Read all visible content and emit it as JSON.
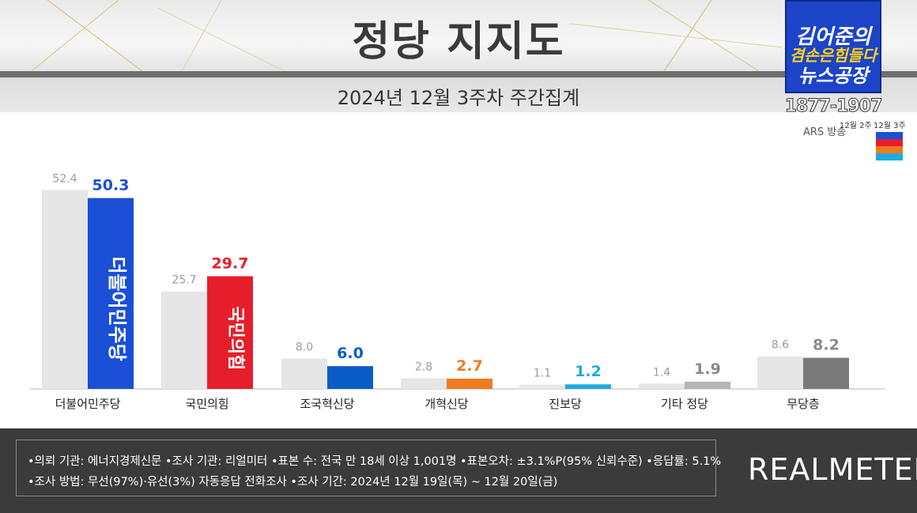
{
  "header": {
    "title": "정당 지지도",
    "subtitle": "2024년 12월 3주차 주간집계"
  },
  "program_logo": {
    "line1": "김어준의",
    "line2": "겸손은힘들다",
    "line3": "뉴스공장"
  },
  "phone_number": "1877-1907",
  "survey_type": "ARS 방송",
  "legend": {
    "week_prev": "12월 2주",
    "week_curr": "12월 3주"
  },
  "colors": {
    "prev_bar": "#e6e6e6",
    "democratic": "#1a4fd6",
    "ppp": "#e61e2b",
    "rebuilding": "#0a5cc7",
    "reform": "#f07a1f",
    "progressive": "#1eaae0",
    "others": "#b5b5b5",
    "none": "#7a7a7a"
  },
  "bar_logos": {
    "democratic": "더불어민주당",
    "ppp": "국민의힘"
  },
  "chart_data": {
    "type": "bar",
    "categories": [
      "더불어민주당",
      "국민의힘",
      "조국혁신당",
      "개혁신당",
      "진보당",
      "기타 정당",
      "무당층"
    ],
    "series": [
      {
        "name": "12월 2주",
        "values": [
          52.4,
          25.7,
          8.0,
          2.8,
          1.1,
          1.4,
          8.6
        ]
      },
      {
        "name": "12월 3주",
        "values": [
          50.3,
          29.7,
          6.0,
          2.7,
          1.2,
          1.9,
          8.2
        ]
      }
    ],
    "value_labels_prev": [
      "52.4",
      "25.7",
      "8.0",
      "2.8",
      "1.1",
      "1.4",
      "8.6"
    ],
    "value_labels_curr": [
      "50.3",
      "29.7",
      "6.0",
      "2.7",
      "1.2",
      "1.9",
      "8.2"
    ],
    "ylim": [
      0,
      60
    ],
    "grid": false,
    "legend_placement": "top-right"
  },
  "footer": {
    "note1": "•의뢰 기관: 에너지경제신문 •조사 기관: 리얼미터 •표본 수: 전국 만 18세 이상 1,001명 •표본오차: ±3.1%P(95% 신뢰수준) •응답률: 5.1%",
    "note2": "•조사 방법: 무선(97%)·유선(3%) 자동응답 전화조사 •조사 기간: 2024년 12월 19일(목) ~ 12월 20일(금)",
    "brand": "REALMETER"
  }
}
